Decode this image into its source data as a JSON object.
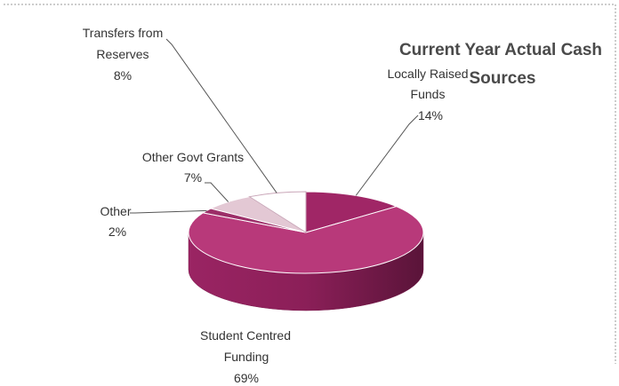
{
  "chart_data": {
    "type": "pie",
    "title_line1": "Current Year Actual Cash",
    "title_line2": "Sources",
    "three_d": true,
    "slices": [
      {
        "name": "Locally Raised Funds",
        "label_lines": [
          "Locally Raised",
          "Funds"
        ],
        "pct_label": "14%",
        "value": 14,
        "color": "#a02666"
      },
      {
        "name": "Student Centred Funding",
        "label_lines": [
          "Student Centred",
          "Funding"
        ],
        "pct_label": "69%",
        "value": 69,
        "color": "#b8397a"
      },
      {
        "name": "Other",
        "label_lines": [
          "Other"
        ],
        "pct_label": "2%",
        "value": 2,
        "color": "#9c2e68"
      },
      {
        "name": "Other Govt Grants",
        "label_lines": [
          "Other Govt Grants"
        ],
        "pct_label": "7%",
        "value": 7,
        "color": "#e3c8d4"
      },
      {
        "name": "Transfers from Reserves",
        "label_lines": [
          "Transfers from",
          "Reserves"
        ],
        "pct_label": "8%",
        "value": 8,
        "color": "#ffffff"
      }
    ]
  }
}
